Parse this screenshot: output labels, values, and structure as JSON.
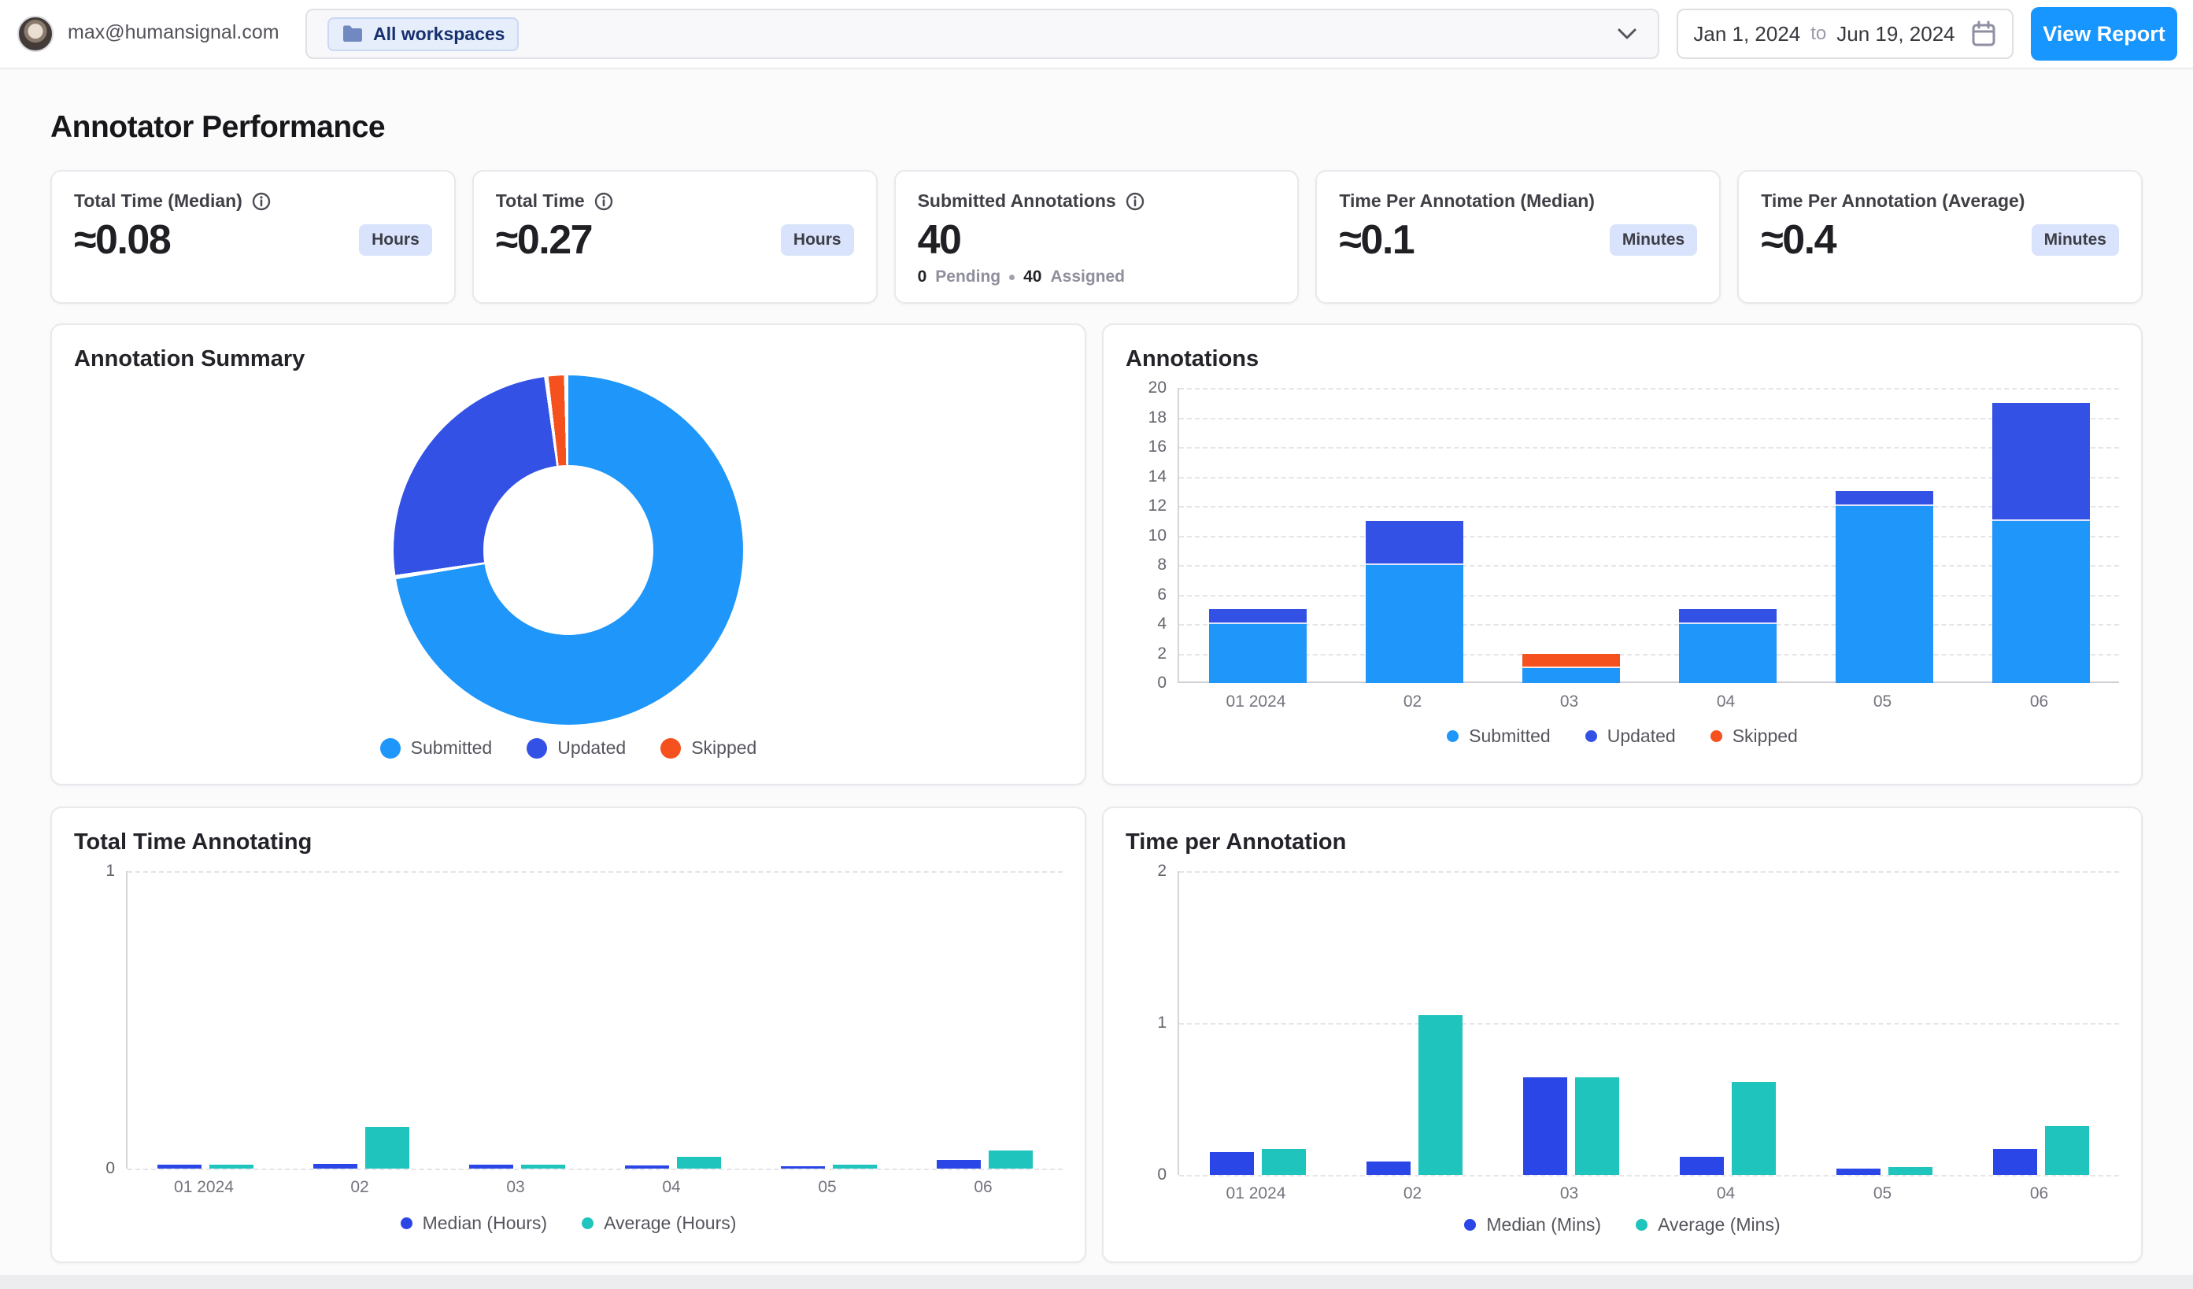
{
  "topbar": {
    "email": "max@humansignal.com",
    "workspace_chip": "All workspaces",
    "date_from": "Jan 1, 2024",
    "date_to_word": "to",
    "date_to": "Jun 19, 2024",
    "view_report": "View Report"
  },
  "page": {
    "title": "Annotator Performance"
  },
  "stat_cards": [
    {
      "label": "Total Time (Median)",
      "value": "≈0.08",
      "unit": "Hours"
    },
    {
      "label": "Total Time",
      "value": "≈0.27",
      "unit": "Hours"
    },
    {
      "label": "Submitted Annotations",
      "value": "40",
      "footer": {
        "pending_value": "0",
        "pending_label": "Pending",
        "assigned_value": "40",
        "assigned_label": "Assigned"
      }
    },
    {
      "label": "Time Per Annotation (Median)",
      "value": "≈0.1",
      "unit": "Minutes"
    },
    {
      "label": "Time Per Annotation (Average)",
      "value": "≈0.4",
      "unit": "Minutes"
    }
  ],
  "colors": {
    "accent": "#1896ff",
    "submitted": "#1e96fa",
    "updated": "#3351e5",
    "skipped": "#f4511e",
    "median": "#2b46e6",
    "average": "#1fc4bd"
  },
  "chart_data": [
    {
      "id": "annotation_summary",
      "type": "pie",
      "title": "Annotation Summary",
      "labels": [
        "Submitted",
        "Updated",
        "Skipped"
      ],
      "values": [
        40,
        14,
        1
      ],
      "percentages": [
        72.7,
        25.5,
        1.8
      ],
      "legend_position": "bottom"
    },
    {
      "id": "annotations",
      "type": "bar",
      "stacked": true,
      "title": "Annotations",
      "categories": [
        "01 2024",
        "02",
        "03",
        "04",
        "05",
        "06"
      ],
      "series": [
        {
          "name": "Submitted",
          "values": [
            4,
            8,
            1,
            4,
            12,
            11
          ]
        },
        {
          "name": "Updated",
          "values": [
            1,
            3,
            0,
            1,
            1,
            8
          ]
        },
        {
          "name": "Skipped",
          "values": [
            0,
            0,
            1,
            0,
            0,
            0
          ]
        }
      ],
      "ylim": [
        0,
        20
      ],
      "yticks": [
        0,
        2,
        4,
        6,
        8,
        10,
        12,
        14,
        16,
        18,
        20
      ],
      "grid": "dashed",
      "legend_position": "bottom"
    },
    {
      "id": "total_time_annotating",
      "type": "bar",
      "title": "Total Time Annotating",
      "categories": [
        "01 2024",
        "02",
        "03",
        "04",
        "05",
        "06"
      ],
      "series": [
        {
          "name": "Median (Hours)",
          "values": [
            0.012,
            0.015,
            0.012,
            0.01,
            0.008,
            0.03
          ]
        },
        {
          "name": "Average (Hours)",
          "values": [
            0.012,
            0.14,
            0.012,
            0.04,
            0.012,
            0.06
          ]
        }
      ],
      "ylim": [
        0,
        1
      ],
      "yticks": [
        0,
        1
      ],
      "grid": "dashed",
      "legend_position": "bottom"
    },
    {
      "id": "time_per_annotation",
      "type": "bar",
      "title": "Time per Annotation",
      "categories": [
        "01 2024",
        "02",
        "03",
        "04",
        "05",
        "06"
      ],
      "series": [
        {
          "name": "Median (Mins)",
          "values": [
            0.15,
            0.09,
            0.64,
            0.12,
            0.04,
            0.17
          ]
        },
        {
          "name": "Average (Mins)",
          "values": [
            0.17,
            1.05,
            0.64,
            0.61,
            0.05,
            0.32
          ]
        }
      ],
      "ylim": [
        0,
        2
      ],
      "yticks": [
        0,
        1,
        2
      ],
      "grid": "dashed",
      "legend_position": "bottom"
    }
  ]
}
